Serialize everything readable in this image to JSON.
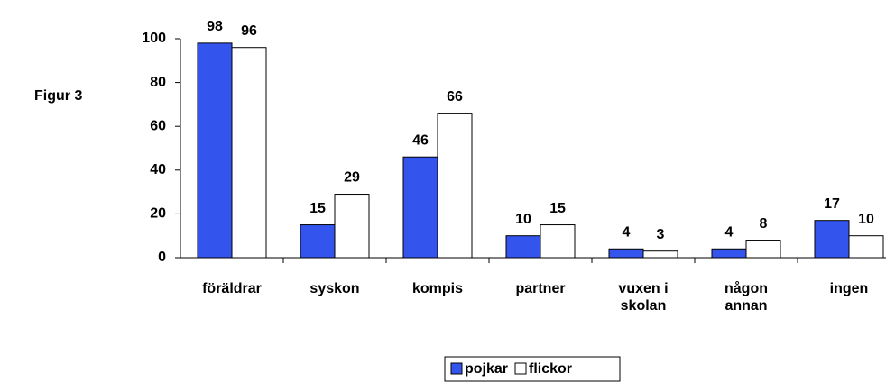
{
  "chart_data": {
    "type": "bar",
    "annotation": "Figur 3",
    "categories": [
      "föräldrar",
      "syskon",
      "kompis",
      "partner",
      "vuxen i skolan",
      "någon annan",
      "ingen"
    ],
    "series": [
      {
        "name": "pojkar",
        "color": "#3355ee",
        "values": [
          98,
          15,
          46,
          10,
          4,
          4,
          17
        ]
      },
      {
        "name": "flickor",
        "color": "#ffffff",
        "values": [
          96,
          29,
          66,
          15,
          3,
          8,
          10
        ]
      }
    ],
    "ylim": [
      0,
      100
    ],
    "yticks": [
      0,
      20,
      40,
      60,
      80,
      100
    ],
    "grid": false,
    "legend": "bottom"
  }
}
